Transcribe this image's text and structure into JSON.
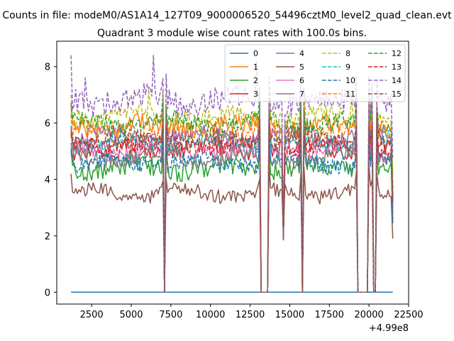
{
  "chart_data": {
    "type": "line",
    "suptitle": "Counts in file: modeM0/AS1A14_127T09_9000006520_54496cztM0_level2_quad_clean.evt",
    "title": "Quadrant 3 module wise count rates with 100.0s bins.",
    "xlabel": "",
    "ylabel": "",
    "x_offset_label": "+4.99e8",
    "xlim": [
      300,
      22500
    ],
    "ylim": [
      -0.42,
      8.9
    ],
    "x_ticks": [
      2500,
      5000,
      7500,
      10000,
      12500,
      15000,
      17500,
      20000,
      22500
    ],
    "x_tick_labels": [
      "2500",
      "5000",
      "7500",
      "10000",
      "12500",
      "15000",
      "17500",
      "20000",
      "22500"
    ],
    "y_ticks": [
      0,
      2,
      4,
      6,
      8
    ],
    "y_tick_labels": [
      "0",
      "2",
      "4",
      "6",
      "8"
    ],
    "x_range": [
      1200,
      21500
    ],
    "bin_seconds": 100,
    "gaps": [
      {
        "start": 7050,
        "end": 7150
      },
      {
        "start": 13150,
        "end": 13600
      },
      {
        "start": 15800,
        "end": 15850
      },
      {
        "start": 19300,
        "end": 19900
      },
      {
        "start": 20300,
        "end": 20400
      }
    ],
    "dips": [
      {
        "x": 12950,
        "value": 1.3
      },
      {
        "x": 14050,
        "value": 1.8
      },
      {
        "x": 14600,
        "value": 2.0
      },
      {
        "x": 21450,
        "value": 2.4
      }
    ],
    "series": [
      {
        "name": "0",
        "color": "#1f77b4",
        "dashed": false,
        "level": 0.0,
        "noise": 0.0,
        "start": 0.0,
        "peaks": []
      },
      {
        "name": "1",
        "color": "#ff7f0e",
        "dashed": false,
        "level": 5.9,
        "noise": 0.35,
        "start": 6.6,
        "peaks": []
      },
      {
        "name": "2",
        "color": "#2ca02c",
        "dashed": false,
        "level": 4.4,
        "noise": 0.35,
        "start": 5.0,
        "peaks": []
      },
      {
        "name": "3",
        "color": "#d62728",
        "dashed": false,
        "level": 5.1,
        "noise": 0.3,
        "start": 5.8,
        "peaks": []
      },
      {
        "name": "4",
        "color": "#9467bd",
        "dashed": false,
        "level": 5.5,
        "noise": 0.3,
        "start": 5.9,
        "peaks": []
      },
      {
        "name": "5",
        "color": "#8c564b",
        "dashed": false,
        "level": 3.5,
        "noise": 0.25,
        "start": 4.2,
        "peaks": []
      },
      {
        "name": "6",
        "color": "#e377c2",
        "dashed": false,
        "level": 5.0,
        "noise": 0.3,
        "start": 5.5,
        "peaks": []
      },
      {
        "name": "7",
        "color": "#7f7f7f",
        "dashed": false,
        "level": 4.8,
        "noise": 0.3,
        "start": 5.3,
        "peaks": []
      },
      {
        "name": "8",
        "color": "#bcbd22",
        "dashed": true,
        "level": 6.2,
        "noise": 0.35,
        "start": 7.0,
        "peaks": [
          {
            "x": 6100,
            "value": 7.2
          },
          {
            "x": 18900,
            "value": 7.0
          }
        ]
      },
      {
        "name": "9",
        "color": "#17becf",
        "dashed": true,
        "level": 5.3,
        "noise": 0.3,
        "start": 5.9,
        "peaks": []
      },
      {
        "name": "10",
        "color": "#1f77b4",
        "dashed": true,
        "level": 4.6,
        "noise": 0.3,
        "start": 5.1,
        "peaks": []
      },
      {
        "name": "11",
        "color": "#ff7f0e",
        "dashed": true,
        "level": 5.7,
        "noise": 0.3,
        "start": 6.3,
        "peaks": []
      },
      {
        "name": "12",
        "color": "#2ca02c",
        "dashed": true,
        "level": 6.0,
        "noise": 0.3,
        "start": 6.7,
        "peaks": []
      },
      {
        "name": "13",
        "color": "#d62728",
        "dashed": true,
        "level": 5.2,
        "noise": 0.3,
        "start": 5.7,
        "peaks": []
      },
      {
        "name": "14",
        "color": "#9467bd",
        "dashed": true,
        "level": 6.8,
        "noise": 0.45,
        "start": 8.4,
        "peaks": [
          {
            "x": 6400,
            "value": 8.4
          },
          {
            "x": 12900,
            "value": 8.2
          },
          {
            "x": 2100,
            "value": 7.6
          }
        ]
      },
      {
        "name": "15",
        "color": "#8c564b",
        "dashed": true,
        "level": 5.4,
        "noise": 0.3,
        "start": 5.6,
        "peaks": []
      }
    ]
  }
}
